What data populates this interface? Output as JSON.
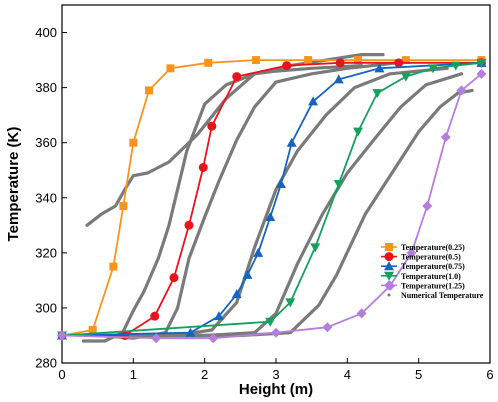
{
  "chart_data": {
    "type": "line",
    "xlabel": "Height (m)",
    "ylabel": "Temperature (K)",
    "xlim": [
      0,
      6
    ],
    "ylim": [
      280,
      410
    ],
    "xticks": [
      0,
      1,
      2,
      3,
      4,
      5,
      6
    ],
    "yticks": [
      280,
      300,
      320,
      340,
      360,
      380,
      400
    ],
    "legend_position": "bottom-right",
    "series": [
      {
        "name": "Temperature(0.25)",
        "color": "#f7941d",
        "marker": "square",
        "x": [
          0.0,
          0.43,
          0.72,
          0.86,
          1.0,
          1.22,
          1.52,
          2.05,
          2.72,
          3.45,
          4.15,
          4.82,
          5.88
        ],
        "y": [
          290,
          292,
          315,
          337,
          360,
          379,
          387,
          389,
          390,
          390,
          390,
          390,
          390
        ]
      },
      {
        "name": "Temperature(0.5)",
        "color": "#e8131b",
        "marker": "circle",
        "x": [
          0.0,
          0.88,
          1.3,
          1.57,
          1.78,
          1.98,
          2.1,
          2.45,
          3.15,
          3.9,
          4.72,
          5.88
        ],
        "y": [
          290,
          290,
          297,
          311,
          330,
          351,
          366,
          384,
          388,
          389,
          389,
          389
        ]
      },
      {
        "name": "Temperature(0.75)",
        "color": "#1565c0",
        "marker": "triangle-up",
        "x": [
          0.0,
          1.8,
          2.2,
          2.45,
          2.6,
          2.75,
          2.92,
          3.07,
          3.22,
          3.52,
          3.88,
          4.45,
          5.88
        ],
        "y": [
          290,
          291,
          297,
          305,
          312,
          320,
          333,
          345,
          360,
          375,
          383,
          387,
          389
        ]
      },
      {
        "name": "Temperature(1.0)",
        "color": "#17a05d",
        "marker": "triangle-down",
        "x": [
          0.0,
          2.92,
          3.2,
          3.55,
          3.88,
          4.15,
          4.42,
          4.82,
          5.2,
          5.52,
          5.88
        ],
        "y": [
          290,
          295,
          302,
          322,
          345,
          364,
          378,
          384,
          387,
          388,
          389
        ]
      },
      {
        "name": "Temperature(1.25)",
        "color": "#b57edc",
        "marker": "diamond",
        "x": [
          0.0,
          1.32,
          2.12,
          3.0,
          3.72,
          4.2,
          4.6,
          4.9,
          5.12,
          5.38,
          5.6,
          5.88
        ],
        "y": [
          290,
          289,
          289,
          291,
          293,
          298,
          308,
          320,
          337,
          362,
          379,
          385
        ]
      },
      {
        "name": "Numerical Temperature",
        "color": "#7a7a7a",
        "marker": "dot",
        "x": [
          0.35,
          0.55,
          0.75,
          0.88,
          1.0,
          1.2,
          1.5,
          1.9,
          2.3,
          2.7,
          3.2,
          3.7,
          4.2,
          4.5
        ],
        "y": [
          330,
          334,
          337,
          343,
          348,
          349,
          353,
          363,
          376,
          385,
          388,
          390,
          392,
          392
        ]
      },
      {
        "name": "",
        "color": "#7a7a7a",
        "marker": "none",
        "x": [
          0.3,
          0.6,
          0.85,
          1.0,
          1.15,
          1.35,
          1.5,
          1.75,
          2.0,
          2.3,
          2.7,
          3.0,
          3.5,
          4.2
        ],
        "y": [
          288,
          288,
          291,
          299,
          306,
          318,
          330,
          357,
          374,
          381,
          385,
          386,
          387,
          388
        ]
      },
      {
        "name": "",
        "color": "#7a7a7a",
        "marker": "none",
        "x": [
          0.55,
          1.0,
          1.45,
          1.62,
          1.78,
          2.0,
          2.2,
          2.45,
          2.7,
          3.0,
          3.5,
          4.0,
          4.7
        ],
        "y": [
          290,
          289,
          291,
          300,
          318,
          333,
          346,
          361,
          373,
          382,
          385,
          387,
          389
        ]
      },
      {
        "name": "",
        "color": "#7a7a7a",
        "marker": "none",
        "x": [
          0.8,
          1.6,
          2.1,
          2.45,
          2.7,
          3.0,
          3.3,
          3.7,
          4.1,
          4.6,
          5.4
        ],
        "y": [
          290,
          290,
          292,
          302,
          322,
          343,
          357,
          370,
          380,
          385,
          387
        ]
      },
      {
        "name": "",
        "color": "#7a7a7a",
        "marker": "none",
        "x": [
          1.0,
          2.0,
          2.7,
          3.0,
          3.3,
          3.65,
          4.0,
          4.4,
          4.75,
          5.1,
          5.6
        ],
        "y": [
          290,
          290,
          291,
          298,
          316,
          334,
          349,
          362,
          373,
          381,
          385
        ]
      },
      {
        "name": "",
        "color": "#7a7a7a",
        "marker": "none",
        "x": [
          1.4,
          2.5,
          3.2,
          3.6,
          3.85,
          4.25,
          4.7,
          5.0,
          5.3,
          5.55,
          5.75
        ],
        "y": [
          290,
          290,
          291,
          301,
          312,
          334,
          352,
          364,
          373,
          378,
          379
        ]
      }
    ]
  }
}
